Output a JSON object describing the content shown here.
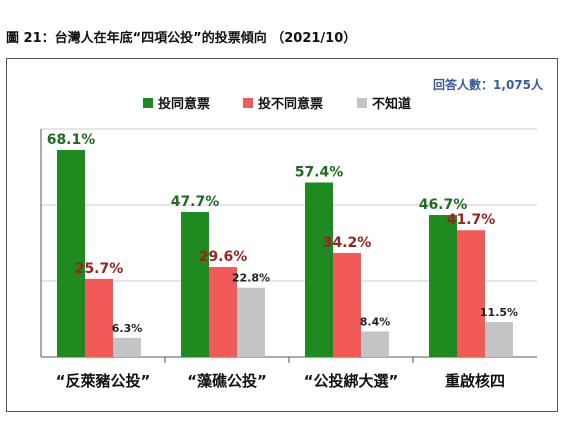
{
  "figure_title": "圖 21：台灣人在年底“四項公投”的投票傾向 （2021/10）",
  "respondents_note": "回答人數：1,075人",
  "colors": {
    "agree": "#1f8a1f",
    "disagree": "#f25a5a",
    "unknown": "#c4c4c4",
    "agree_label": "#1f6b1f",
    "disagree_label": "#9b2323",
    "unknown_label": "#222222",
    "grid": "#cccccc",
    "axis": "#555555"
  },
  "chart_data": {
    "type": "bar",
    "categories": [
      "“反萊豬公投”",
      "“藻礁公投”",
      "“公投綁大選”",
      "重啟核四"
    ],
    "series": [
      {
        "name": "投同意票",
        "values": [
          68.1,
          47.7,
          57.4,
          46.7
        ],
        "labels": [
          "68.1%",
          "47.7%",
          "57.4%",
          "46.7%"
        ]
      },
      {
        "name": "投不同意票",
        "values": [
          25.7,
          29.6,
          34.2,
          41.7
        ],
        "labels": [
          "25.7%",
          "29.6%",
          "34.2%",
          "41.7%"
        ]
      },
      {
        "name": "不知道",
        "values": [
          6.3,
          22.8,
          8.4,
          11.5
        ],
        "labels": [
          "6.3%",
          "22.8%",
          "8.4%",
          "11.5%"
        ]
      }
    ],
    "ylim": [
      0,
      75
    ],
    "grid": true,
    "legend_position": "top"
  }
}
